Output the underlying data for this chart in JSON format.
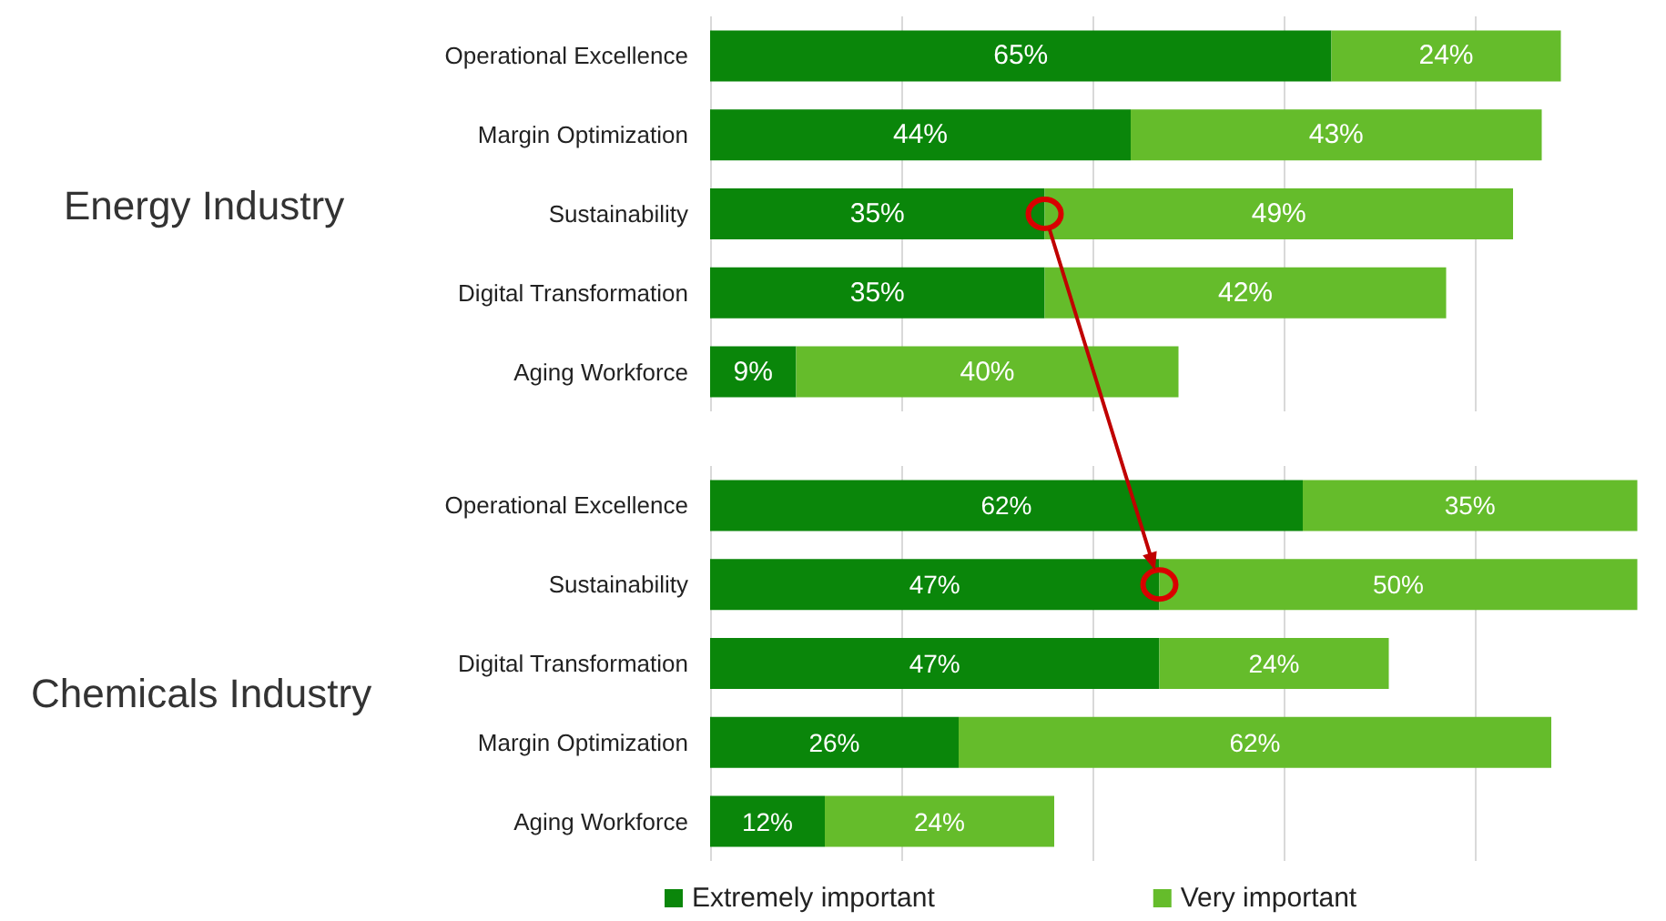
{
  "chart_data": [
    {
      "type": "bar",
      "title": "Energy Industry",
      "orientation": "horizontal",
      "stacked": true,
      "categories": [
        "Operational Excellence",
        "Margin Optimization",
        "Sustainability",
        "Digital Transformation",
        "Aging Workforce"
      ],
      "series": [
        {
          "color": "#0a860a",
          "values": [
            65,
            44,
            35,
            35,
            9
          ],
          "value_labels": [
            "65%",
            "44%",
            "35%",
            "35%",
            "9%"
          ]
        },
        {
          "color": "#65bc2b",
          "values": [
            24,
            43,
            49,
            42,
            40
          ],
          "value_labels": [
            "24%",
            "43%",
            "49%",
            "42%",
            "40%"
          ]
        }
      ],
      "grid": "x",
      "tick_labels": "y"
    },
    {
      "type": "bar",
      "title": "Chemicals Industry",
      "orientation": "horizontal",
      "stacked": true,
      "categories": [
        "Operational Excellence",
        "Sustainability",
        "Digital Transformation",
        "Margin Optimization",
        "Aging Workforce"
      ],
      "series": [
        {
          "name": "Extremely important",
          "color": "#0a860a",
          "values": [
            62,
            47,
            47,
            26,
            12
          ],
          "value_labels": [
            "62%",
            "47%",
            "47%",
            "26%",
            "12%"
          ]
        },
        {
          "name": "Very important",
          "color": "#65bc2b",
          "values": [
            35,
            50,
            24,
            62,
            24
          ],
          "value_labels": [
            "35%",
            "50%",
            "24%",
            "62%",
            "24%"
          ]
        }
      ],
      "grid": "x",
      "tick_labels": "y",
      "legend": "bottom"
    }
  ]
}
